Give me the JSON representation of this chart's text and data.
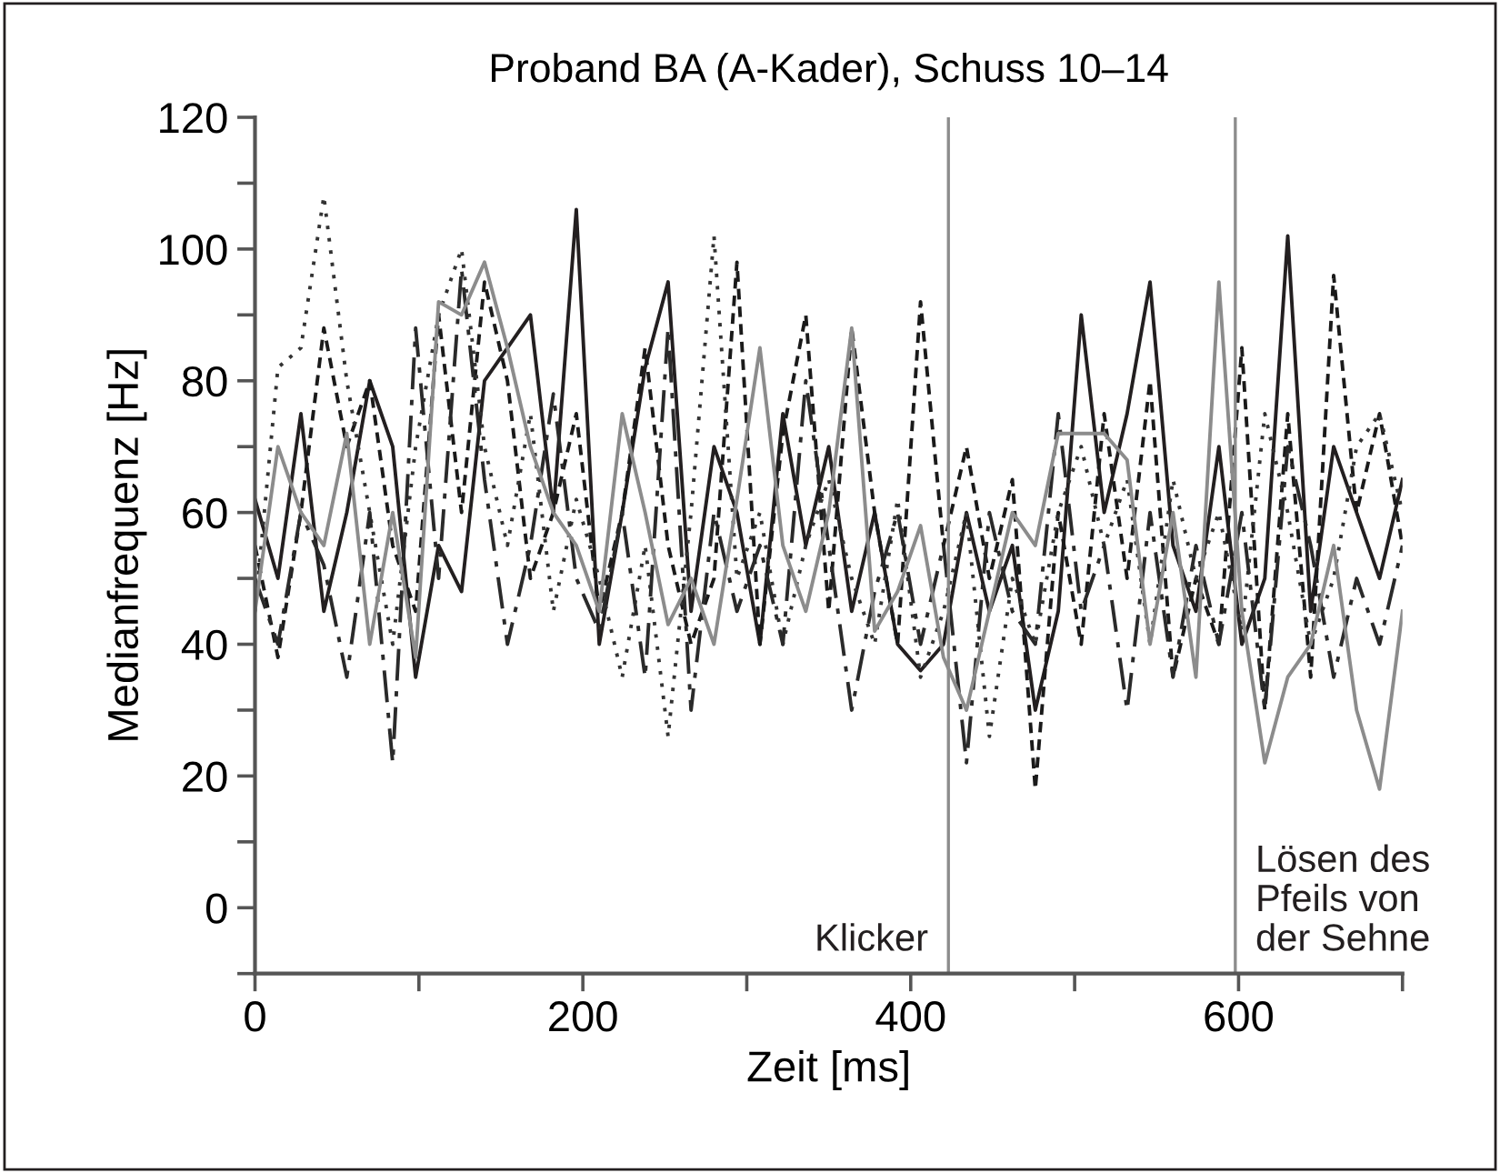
{
  "chart_data": {
    "type": "line",
    "title": "Proband BA (A-Kader), Schuss 10–14",
    "xlabel": "Zeit [ms]",
    "ylabel": "Medianfrequenz [Hz]",
    "x": [
      0,
      14,
      28,
      42,
      56,
      70,
      84,
      98,
      112,
      126,
      140,
      154,
      168,
      182,
      196,
      210,
      224,
      238,
      252,
      266,
      280,
      294,
      308,
      322,
      336,
      350,
      364,
      378,
      392,
      406,
      420,
      434,
      448,
      462,
      476,
      490,
      504,
      518,
      532,
      546,
      560,
      574,
      588,
      602,
      616,
      630,
      644,
      658,
      672,
      686,
      700
    ],
    "series": [
      {
        "color": "#231f20",
        "line_style": "solid",
        "values": [
          62,
          50,
          75,
          45,
          60,
          80,
          70,
          35,
          55,
          48,
          80,
          85,
          90,
          60,
          106,
          40,
          60,
          82,
          95,
          45,
          70,
          60,
          40,
          75,
          55,
          70,
          45,
          60,
          40,
          36,
          40,
          60,
          45,
          55,
          30,
          45,
          90,
          60,
          75,
          95,
          55,
          45,
          70,
          40,
          50,
          102,
          45,
          70,
          60,
          50,
          65
        ]
      },
      {
        "color": "#1a1a1a",
        "line_style": "dashed",
        "values": [
          55,
          38,
          60,
          88,
          70,
          80,
          55,
          45,
          90,
          60,
          95,
          80,
          50,
          60,
          75,
          45,
          60,
          85,
          55,
          40,
          50,
          98,
          40,
          72,
          90,
          45,
          88,
          60,
          40,
          92,
          55,
          70,
          50,
          65,
          18,
          60,
          40,
          75,
          50,
          80,
          35,
          50,
          40,
          85,
          30,
          75,
          35,
          96,
          60,
          75,
          55
        ]
      },
      {
        "color": "#333333",
        "line_style": "dotted",
        "values": [
          45,
          82,
          85,
          108,
          80,
          60,
          40,
          70,
          90,
          100,
          70,
          55,
          75,
          45,
          62,
          50,
          35,
          55,
          26,
          60,
          102,
          50,
          60,
          40,
          55,
          65,
          50,
          40,
          62,
          35,
          45,
          60,
          26,
          50,
          40,
          60,
          70,
          55,
          65,
          40,
          65,
          50,
          60,
          42,
          75,
          60,
          40,
          50,
          70,
          75,
          60
        ]
      },
      {
        "color": "#2a2a2a",
        "line_style": "dashdot",
        "values": [
          50,
          40,
          60,
          52,
          35,
          60,
          22,
          88,
          50,
          97,
          65,
          40,
          55,
          78,
          50,
          42,
          60,
          35,
          88,
          30,
          60,
          45,
          55,
          40,
          80,
          55,
          30,
          48,
          60,
          40,
          55,
          22,
          60,
          45,
          40,
          75,
          45,
          55,
          30,
          60,
          35,
          55,
          40,
          60,
          30,
          70,
          55,
          35,
          50,
          40,
          55
        ]
      },
      {
        "color": "#8c8c8c",
        "line_style": "solid",
        "values": [
          45,
          70,
          60,
          55,
          72,
          40,
          60,
          38,
          92,
          90,
          98,
          85,
          70,
          60,
          55,
          45,
          75,
          60,
          43,
          50,
          40,
          62,
          85,
          55,
          45,
          60,
          88,
          42,
          48,
          58,
          38,
          30,
          45,
          60,
          55,
          72,
          72,
          72,
          68,
          40,
          60,
          35,
          95,
          45,
          22,
          35,
          40,
          55,
          30,
          18,
          45
        ]
      }
    ],
    "xlim": [
      0,
      700
    ],
    "ylim": [
      -10,
      120
    ],
    "xticks": [
      0,
      {
        "value": 100,
        "label": null
      },
      200,
      {
        "value": 300,
        "label": null
      },
      400,
      {
        "value": 500,
        "label": null
      },
      600,
      {
        "value": 700,
        "label": null
      }
    ],
    "yticks": [
      {
        "value": -10,
        "label": null
      },
      0,
      {
        "value": 10,
        "label": null
      },
      20,
      {
        "value": 30,
        "label": null
      },
      40,
      {
        "value": 50,
        "label": null
      },
      60,
      {
        "value": 70,
        "label": null
      },
      80,
      {
        "value": 90,
        "label": null
      },
      100,
      {
        "value": 110,
        "label": null
      },
      120
    ],
    "ref_lines": [
      {
        "axis": "x",
        "value": 423,
        "label": "Klicker",
        "color": "#8c8c8c"
      },
      {
        "axis": "x",
        "value": 598,
        "label": "Lösen des\nPfeils von\nder Sehne",
        "color": "#8c8c8c"
      }
    ],
    "grid": false
  }
}
